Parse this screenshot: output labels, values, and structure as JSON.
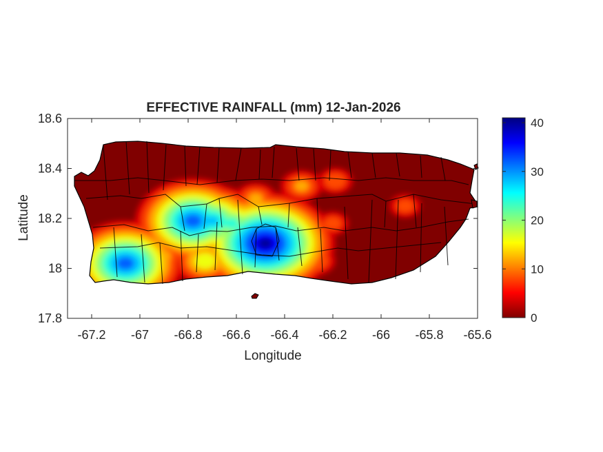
{
  "chart_data": {
    "type": "heatmap",
    "title": "EFFECTIVE RAINFALL (mm) 12-Jan-2026",
    "xlabel": "Longitude",
    "ylabel": "Latitude",
    "xlim": [
      -67.3,
      -65.6
    ],
    "ylim": [
      17.8,
      18.6
    ],
    "xticks": [
      -67.2,
      -67,
      -66.8,
      -66.6,
      -66.4,
      -66.2,
      -66,
      -65.8,
      -65.6
    ],
    "yticks": [
      17.8,
      18,
      18.2,
      18.4,
      18.6
    ],
    "xtick_labels": [
      "-67.2",
      "-67",
      "-66.8",
      "-66.6",
      "-66.4",
      "-66.2",
      "-66",
      "-65.8",
      "-65.6"
    ],
    "ytick_labels": [
      "17.8",
      "18",
      "18.2",
      "18.4",
      "18.6"
    ],
    "colorbar": {
      "colormap": "jet",
      "range": [
        0,
        41
      ],
      "ticks": [
        0,
        10,
        20,
        30,
        40
      ],
      "tick_labels": [
        "0",
        "10",
        "20",
        "30",
        "40"
      ]
    },
    "rainfall_hotspots_mm": [
      {
        "lon": -66.48,
        "lat": 18.1,
        "peak": 40
      },
      {
        "lon": -66.5,
        "lat": 18.13,
        "peak": 30
      },
      {
        "lon": -66.78,
        "lat": 18.19,
        "peak": 33
      },
      {
        "lon": -66.7,
        "lat": 18.19,
        "peak": 28
      },
      {
        "lon": -66.62,
        "lat": 18.18,
        "peak": 24
      },
      {
        "lon": -66.68,
        "lat": 18.14,
        "peak": 20
      },
      {
        "lon": -66.73,
        "lat": 18.03,
        "peak": 18
      },
      {
        "lon": -67.06,
        "lat": 18.02,
        "peak": 33
      },
      {
        "lon": -66.9,
        "lat": 18.05,
        "peak": 12
      },
      {
        "lon": -66.33,
        "lat": 18.33,
        "peak": 12
      },
      {
        "lon": -66.19,
        "lat": 18.35,
        "peak": 10
      },
      {
        "lon": -66.27,
        "lat": 18.03,
        "peak": 11
      },
      {
        "lon": -66.2,
        "lat": 18.18,
        "peak": 9
      },
      {
        "lon": -65.9,
        "lat": 18.25,
        "peak": 9
      },
      {
        "lon": -66.52,
        "lat": 18.28,
        "peak": 12
      },
      {
        "lon": -66.35,
        "lat": 18.12,
        "peak": 9
      }
    ]
  }
}
